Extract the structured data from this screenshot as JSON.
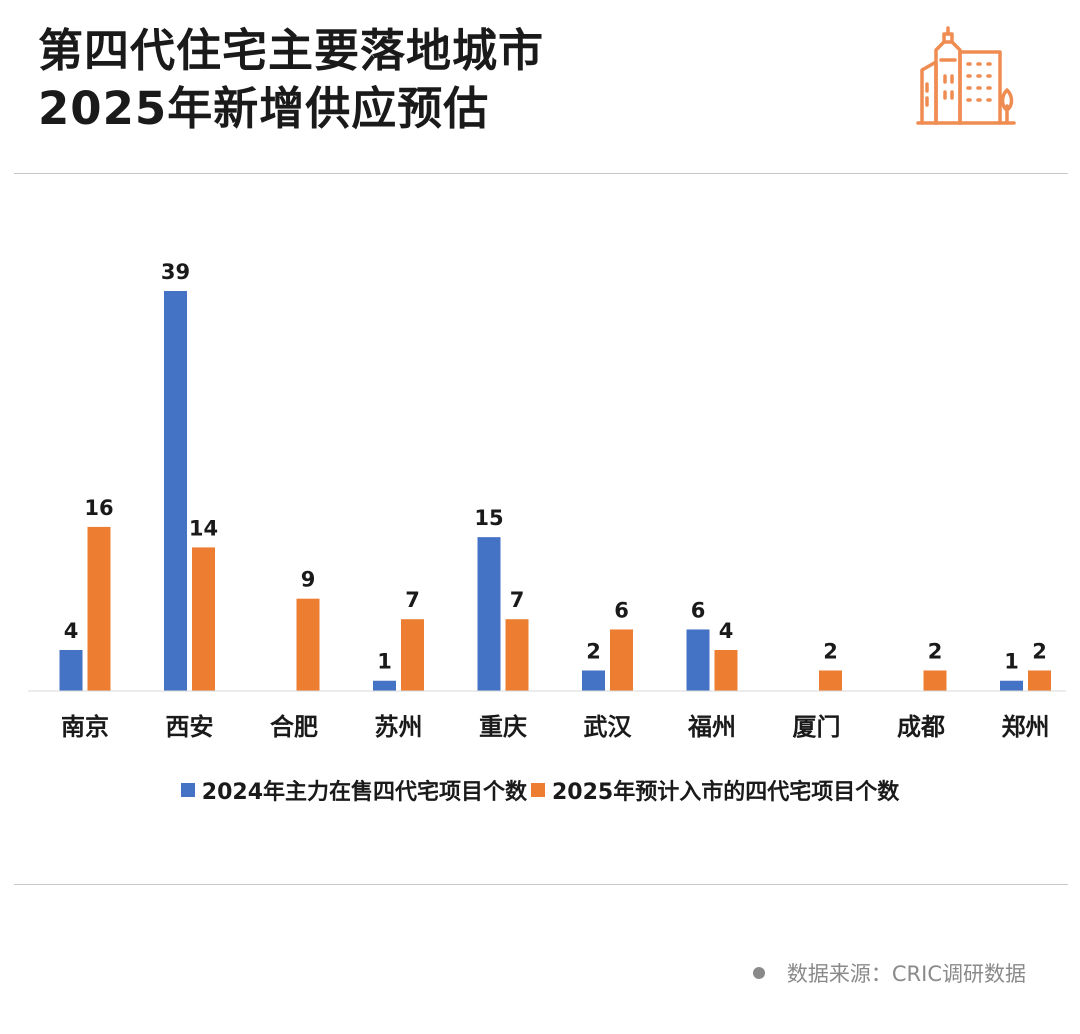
{
  "title": {
    "line1": "第四代住宅主要落地城市",
    "line2": "2025年新增供应预估"
  },
  "icon": "city-buildings-icon",
  "colors": {
    "series_2024": "#4472c4",
    "series_2025": "#ed7d31",
    "logo": "#ef8c52"
  },
  "source": "数据来源：CRIC调研数据",
  "chart_data": {
    "type": "bar",
    "categories": [
      "南京",
      "西安",
      "合肥",
      "苏州",
      "重庆",
      "武汉",
      "福州",
      "厦门",
      "成都",
      "郑州"
    ],
    "series": [
      {
        "name": "2024年主力在售四代宅项目个数",
        "values": [
          4,
          39,
          null,
          1,
          15,
          2,
          6,
          null,
          null,
          1
        ]
      },
      {
        "name": "2025年预计入市的四代宅项目个数",
        "values": [
          16,
          14,
          9,
          7,
          7,
          6,
          4,
          2,
          2,
          2
        ]
      }
    ],
    "ylim": [
      0,
      39
    ],
    "grid": false,
    "legend": "bottom",
    "data_labels": true
  }
}
